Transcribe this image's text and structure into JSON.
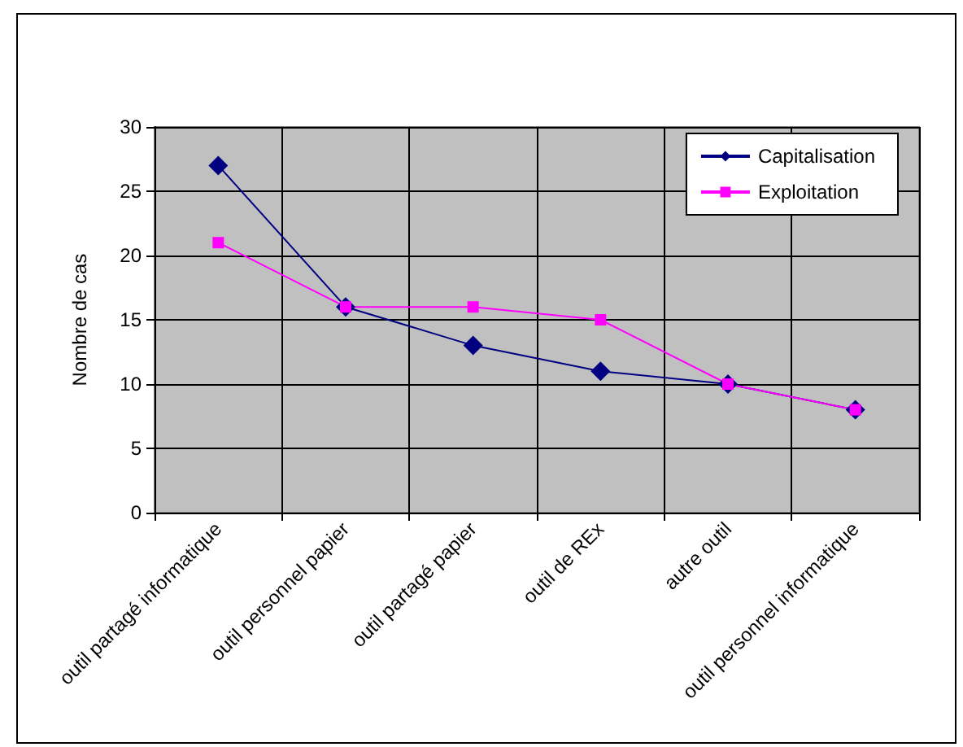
{
  "chart_data": {
    "type": "line",
    "ylabel": "Nombre de cas",
    "categories": [
      "outil partagé informatique",
      "outil personnel papier",
      "outil partagé papier",
      "outil de REx",
      "autre outil",
      "outil personnel informatique"
    ],
    "series": [
      {
        "name": "Capitalisation",
        "color": "#000080",
        "marker": "diamond",
        "values": [
          27,
          16,
          13,
          11,
          10,
          8
        ]
      },
      {
        "name": "Exploitation",
        "color": "#ff00ff",
        "marker": "square",
        "values": [
          21,
          16,
          16,
          15,
          10,
          8
        ]
      }
    ],
    "ylim": [
      0,
      30
    ],
    "yticks": [
      0,
      5,
      10,
      15,
      20,
      25,
      30
    ],
    "grid": true,
    "legend": "top right"
  }
}
